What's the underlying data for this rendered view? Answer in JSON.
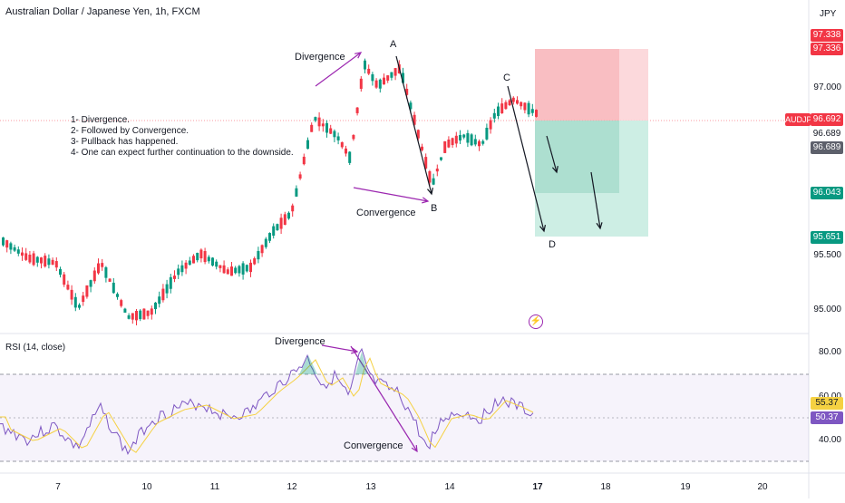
{
  "header": {
    "title": "Australian Dollar / Japanese Yen, 1h, FXCM",
    "currency": "JPY"
  },
  "price_axis": {
    "labels": [
      "97.000",
      "95.500",
      "95.000"
    ]
  },
  "badges": {
    "tp_top": {
      "value": "97.338",
      "color": "#f23645"
    },
    "tp_top2": {
      "value": "97.336",
      "color": "#f23645"
    },
    "symbol": {
      "value": "AUDJPY",
      "color": "#f23645"
    },
    "last": {
      "value": "96.692",
      "color": "#f23645"
    },
    "bid": {
      "value": "96.689",
      "color": "#5d606b"
    },
    "ask": {
      "value": "96.689",
      "color": "#5d606b"
    },
    "target1": {
      "value": "96.043",
      "color": "#089981"
    },
    "target2": {
      "value": "95.651",
      "color": "#089981"
    }
  },
  "annotations": {
    "divergence_top": "Divergence",
    "convergence_mid": "Convergence",
    "point_a": "A",
    "point_b": "B",
    "point_c": "C",
    "point_d": "D",
    "notes": [
      "1- Divergence.",
      "2- Followed by Convergence.",
      "3- Pullback has happened.",
      "4- One can expect further continuation to the downside."
    ],
    "divergence_rsi": "Divergence",
    "convergence_rsi": "Convergence"
  },
  "rsi": {
    "label": "RSI (14, close)",
    "axis": [
      "80.00",
      "60.00",
      "40.00"
    ],
    "badge_upper": {
      "value": "55.37",
      "color": "#f5d142"
    },
    "badge_lower": {
      "value": "50.37",
      "color": "#7e57c2"
    }
  },
  "time_axis": [
    "7",
    "10",
    "11",
    "12",
    "13",
    "14",
    "17",
    "18",
    "19",
    "20"
  ],
  "icons": {
    "lightning": "lightning-icon"
  },
  "colors": {
    "up": "#089981",
    "down": "#f23645",
    "rsi_line": "#7e57c2",
    "rsi_ma": "#f5d142",
    "annotation": "#9c27b0"
  }
}
